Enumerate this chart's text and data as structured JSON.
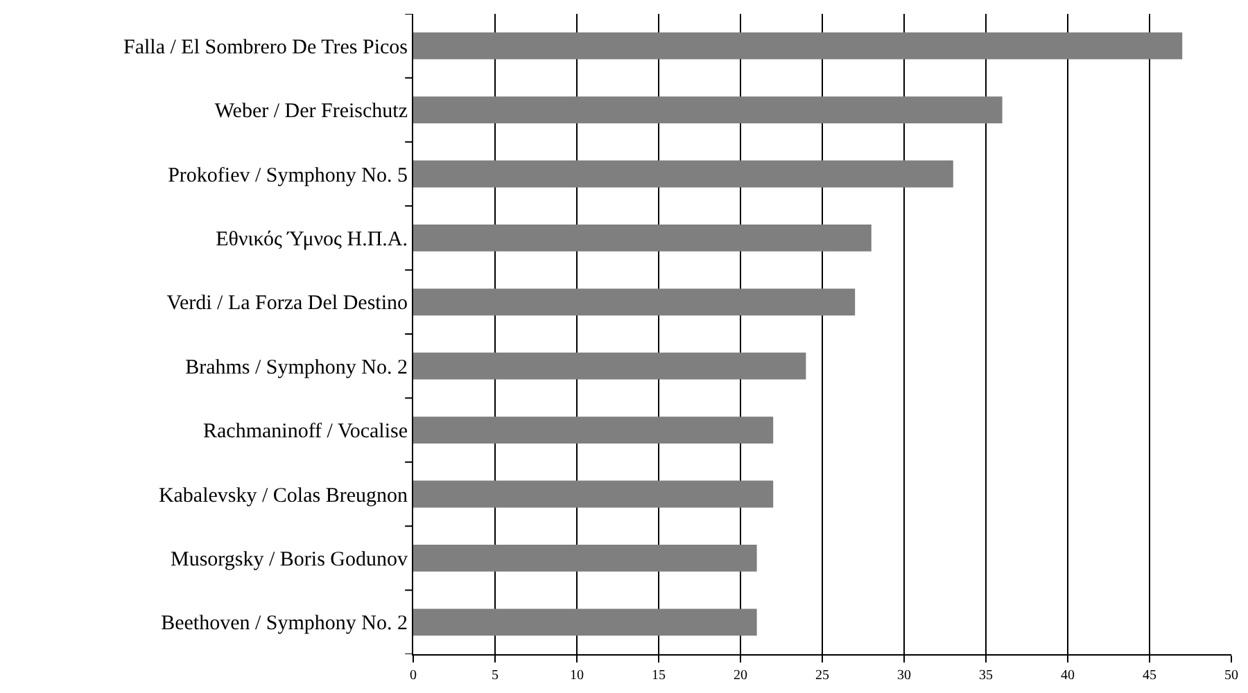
{
  "chart_data": {
    "type": "bar",
    "orientation": "horizontal",
    "categories": [
      "Falla / El Sombrero De Tres Picos",
      "Weber / Der Freischutz",
      "Prokofiev / Symphony No. 5",
      "Εθνικός Ύμνος Η.Π.Α.",
      "Verdi / La Forza Del Destino",
      "Brahms / Symphony No. 2",
      "Rachmaninoff / Vocalise",
      "Kabalevsky / Colas Breugnon",
      "Musorgsky / Boris Godunov",
      "Beethoven / Symphony No. 2"
    ],
    "values": [
      47,
      36,
      33,
      28,
      27,
      24,
      22,
      22,
      21,
      21
    ],
    "color": "#7f7f7f",
    "xlim": [
      0,
      50
    ],
    "xticks": [
      0,
      5,
      10,
      15,
      20,
      25,
      30,
      35,
      40,
      45,
      50
    ],
    "grid": "x"
  }
}
